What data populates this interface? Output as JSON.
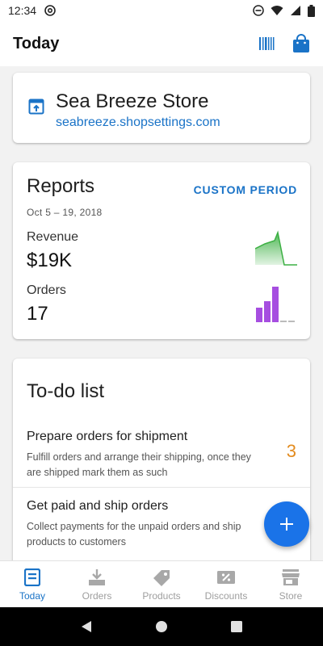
{
  "status_bar": {
    "time": "12:34"
  },
  "app_bar": {
    "title": "Today"
  },
  "store": {
    "name": "Sea Breeze Store",
    "url": "seabreeze.shopsettings.com"
  },
  "reports": {
    "title": "Reports",
    "custom_period": "CUSTOM PERIOD",
    "date_range": "Oct 5 – 19, 2018",
    "revenue_label": "Revenue",
    "revenue_value": "$19K",
    "orders_label": "Orders",
    "orders_value": "17",
    "colors": {
      "revenue": "#3cb043",
      "orders": "#a64ee0"
    }
  },
  "todo": {
    "title": "To-do list",
    "items": [
      {
        "title": "Prepare orders for shipment",
        "description": "Fulfill orders and arrange their shipping, once they are shipped mark them as such",
        "count": "3"
      },
      {
        "title": "Get paid and ship orders",
        "description": "Collect payments for the unpaid orders and ship products to customers",
        "count": ""
      }
    ]
  },
  "bottom_nav": {
    "items": [
      {
        "label": "Today",
        "icon": "today-icon"
      },
      {
        "label": "Orders",
        "icon": "orders-icon"
      },
      {
        "label": "Products",
        "icon": "products-tag-icon"
      },
      {
        "label": "Discounts",
        "icon": "discounts-icon"
      },
      {
        "label": "Store",
        "icon": "store-icon"
      }
    ]
  },
  "colors": {
    "accent": "#1a73c7",
    "fab": "#1a73e8",
    "count": "#e38b1e"
  }
}
